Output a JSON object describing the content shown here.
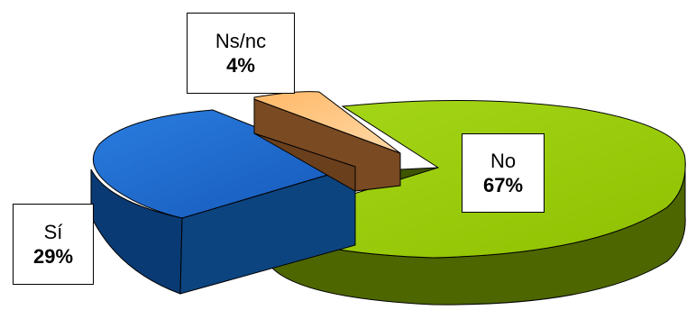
{
  "chart_data": {
    "type": "pie",
    "style": "3d-exploded",
    "title": "",
    "slices": [
      {
        "label": "No",
        "value": 67,
        "display": "67%",
        "color": "#99cc00",
        "side_color": "#4d6600"
      },
      {
        "label": "Sí",
        "value": 29,
        "display": "29%",
        "color": "#1f6fd1",
        "side_color": "#0a3a73"
      },
      {
        "label": "Ns/nc",
        "value": 4,
        "display": "4%",
        "color": "#ff9a3a",
        "side_color": "#7a4a22"
      }
    ]
  }
}
